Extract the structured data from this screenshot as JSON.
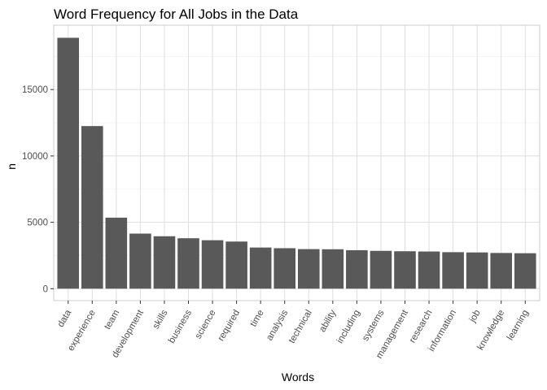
{
  "chart_data": {
    "type": "bar",
    "title": "Word Frequency for All Jobs in the Data",
    "xlabel": "Words",
    "ylabel": "n",
    "categories": [
      "data",
      "experience",
      "team",
      "development",
      "skills",
      "business",
      "science",
      "required",
      "time",
      "analysis",
      "technical",
      "ability",
      "including",
      "systems",
      "management",
      "research",
      "information",
      "job",
      "knowledge",
      "learning"
    ],
    "values": [
      18900,
      12250,
      5350,
      4150,
      3950,
      3800,
      3650,
      3550,
      3100,
      3050,
      2980,
      2970,
      2900,
      2850,
      2820,
      2800,
      2750,
      2730,
      2690,
      2670
    ],
    "ylim": [
      -900,
      19850
    ],
    "yticks": [
      0,
      5000,
      10000,
      15000
    ],
    "ytick_labels": [
      "0",
      "5000",
      "10000",
      "15000"
    ],
    "bar_color": "#595959",
    "grid": true,
    "legend": "none"
  }
}
